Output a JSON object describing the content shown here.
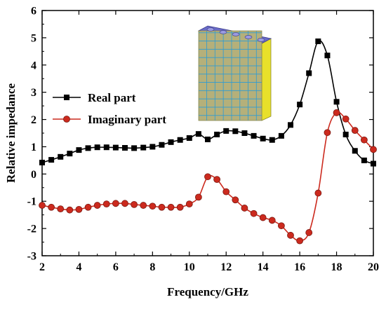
{
  "chart_data": {
    "type": "line",
    "title": "",
    "xlabel": "Frequency/GHz",
    "ylabel": "Relative impedance",
    "xlim": [
      2,
      20
    ],
    "ylim": [
      -3,
      6
    ],
    "xticks": [
      2,
      4,
      6,
      8,
      10,
      12,
      14,
      16,
      18,
      20
    ],
    "yticks": [
      -3,
      -2,
      -1,
      0,
      1,
      2,
      3,
      4,
      5,
      6
    ],
    "grid": false,
    "legend_position": "center-left",
    "series": [
      {
        "name": "Real part",
        "color": "#000000",
        "marker": "square",
        "x": [
          2.0,
          2.5,
          3.0,
          3.5,
          4.0,
          4.5,
          5.0,
          5.5,
          6.0,
          6.5,
          7.0,
          7.5,
          8.0,
          8.5,
          9.0,
          9.5,
          10.0,
          10.5,
          11.0,
          11.5,
          12.0,
          12.5,
          13.0,
          13.5,
          14.0,
          14.5,
          15.0,
          15.5,
          16.0,
          16.5,
          17.0,
          17.5,
          18.0,
          18.5,
          19.0,
          19.5,
          20.0
        ],
        "y": [
          0.42,
          0.52,
          0.63,
          0.75,
          0.88,
          0.95,
          0.98,
          0.98,
          0.97,
          0.96,
          0.95,
          0.97,
          1.0,
          1.07,
          1.17,
          1.25,
          1.32,
          1.47,
          1.27,
          1.45,
          1.58,
          1.57,
          1.5,
          1.4,
          1.3,
          1.25,
          1.4,
          1.8,
          2.55,
          3.7,
          4.87,
          4.35,
          2.65,
          1.45,
          0.85,
          0.5,
          0.38
        ]
      },
      {
        "name": "Imaginary part",
        "color": "#cc2a1e",
        "marker": "circle",
        "x": [
          2.0,
          2.5,
          3.0,
          3.5,
          4.0,
          4.5,
          5.0,
          5.5,
          6.0,
          6.5,
          7.0,
          7.5,
          8.0,
          8.5,
          9.0,
          9.5,
          10.0,
          10.5,
          11.0,
          11.5,
          12.0,
          12.5,
          13.0,
          13.5,
          14.0,
          14.5,
          15.0,
          15.5,
          16.0,
          16.5,
          17.0,
          17.5,
          18.0,
          18.5,
          19.0,
          19.5,
          20.0
        ],
        "y": [
          -1.15,
          -1.22,
          -1.28,
          -1.32,
          -1.3,
          -1.22,
          -1.15,
          -1.1,
          -1.08,
          -1.08,
          -1.12,
          -1.15,
          -1.18,
          -1.22,
          -1.22,
          -1.22,
          -1.1,
          -0.85,
          -0.1,
          -0.2,
          -0.65,
          -0.95,
          -1.25,
          -1.45,
          -1.6,
          -1.7,
          -1.9,
          -2.25,
          -2.45,
          -2.15,
          -0.7,
          1.52,
          2.25,
          2.02,
          1.6,
          1.25,
          0.9
        ]
      }
    ]
  },
  "colors": {
    "panel_face": "#b5b07a",
    "panel_grid": "#2a9bd6",
    "panel_side": "#e8e02a",
    "panel_top": "#6a6cc8"
  },
  "inset_icon": "metamaterial-panel"
}
